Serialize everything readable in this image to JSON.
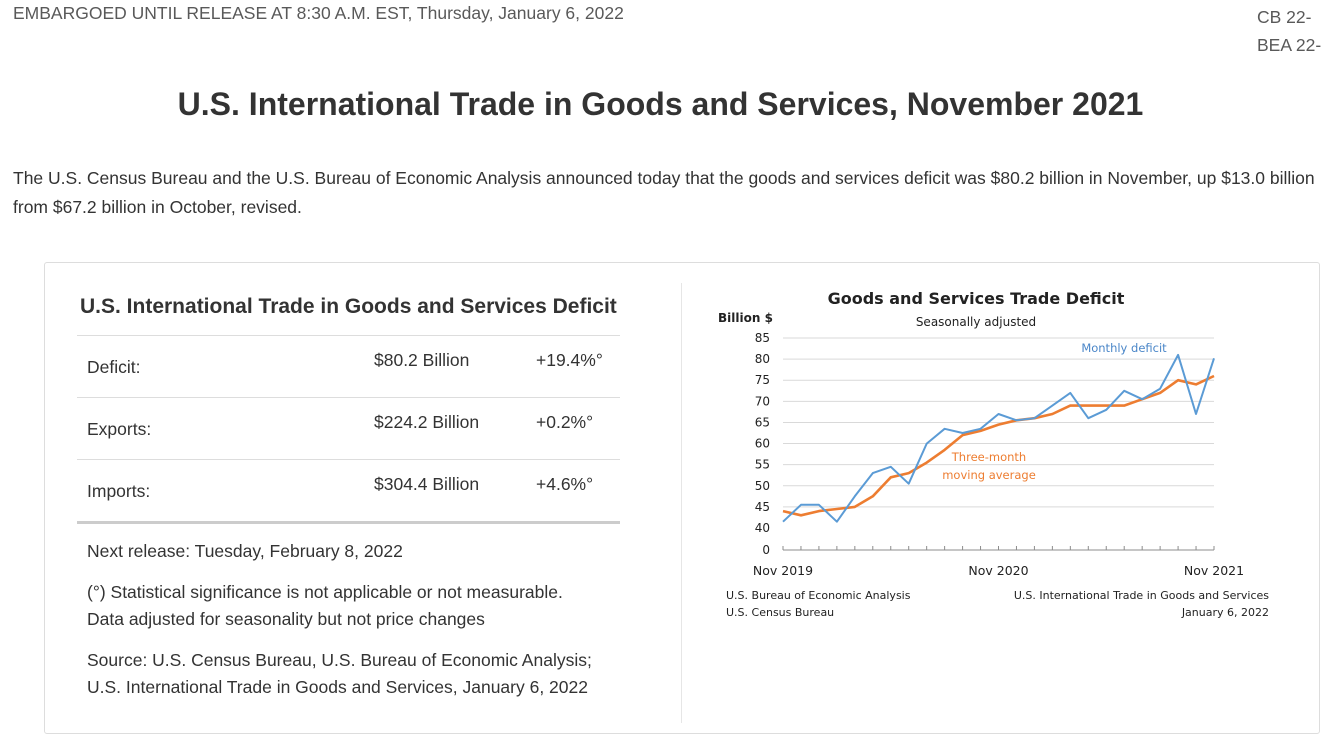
{
  "header": {
    "embargo": "EMBARGOED UNTIL RELEASE AT 8:30 A.M. EST, Thursday, January 6, 2022",
    "codes": [
      "CB 22-",
      "BEA 22-"
    ]
  },
  "title": "U.S. International Trade in Goods and Services, November 2021",
  "lead": "The U.S. Census Bureau and the U.S. Bureau of Economic Analysis announced today that the goods and services deficit was $80.2 billion in November, up $13.0 billion from $67.2 billion in October, revised.",
  "table": {
    "title": "U.S. International Trade in Goods and Services Deficit",
    "rows": [
      {
        "label": "Deficit:",
        "value": "$80.2 Billion",
        "change": "+19.4%°"
      },
      {
        "label": "Exports:",
        "value": "$224.2 Billion",
        "change": "+0.2%°"
      },
      {
        "label": "Imports:",
        "value": "$304.4 Billion",
        "change": "+4.6%°"
      }
    ]
  },
  "notes": {
    "next_release": "Next release: Tuesday, February 8, 2022",
    "significance_1": "(°) Statistical significance is not applicable or not measurable.",
    "significance_2": "Data adjusted for seasonality but not price changes",
    "source_1": "Source: U.S. Census Bureau, U.S. Bureau of Economic Analysis;",
    "source_2": "U.S. International Trade in Goods and Services, January 6, 2022"
  },
  "chart_data": {
    "type": "line",
    "title": "Goods and Services Trade Deficit",
    "subtitle": "Seasonally adjusted",
    "ylabel": "Billion $",
    "ylim": [
      40,
      85
    ],
    "y_break_label": "0",
    "yticks": [
      40,
      45,
      50,
      55,
      60,
      65,
      70,
      75,
      80,
      85
    ],
    "xtick_labels": [
      "Nov 2019",
      "Nov 2020",
      "Nov 2021"
    ],
    "x": [
      "Nov 2019",
      "Dec 2019",
      "Jan 2020",
      "Feb 2020",
      "Mar 2020",
      "Apr 2020",
      "May 2020",
      "Jun 2020",
      "Jul 2020",
      "Aug 2020",
      "Sep 2020",
      "Oct 2020",
      "Nov 2020",
      "Dec 2020",
      "Jan 2021",
      "Feb 2021",
      "Mar 2021",
      "Apr 2021",
      "May 2021",
      "Jun 2021",
      "Jul 2021",
      "Aug 2021",
      "Sep 2021",
      "Oct 2021",
      "Nov 2021"
    ],
    "series": [
      {
        "name": "Monthly deficit",
        "color": "#5b9bd5",
        "values": [
          41.5,
          45.5,
          45.5,
          41.5,
          47.5,
          53.0,
          54.5,
          50.5,
          60.0,
          63.5,
          62.5,
          63.5,
          67.0,
          65.5,
          66.0,
          69.0,
          72.0,
          66.0,
          68.0,
          72.5,
          70.5,
          73.0,
          81.0,
          67.0,
          80.2
        ]
      },
      {
        "name": "Three-month moving average",
        "color": "#ed7d31",
        "values": [
          44.0,
          43.0,
          44.0,
          44.5,
          45.0,
          47.5,
          52.0,
          53.0,
          55.5,
          58.5,
          62.0,
          63.0,
          64.5,
          65.5,
          66.0,
          67.0,
          69.0,
          69.0,
          69.0,
          69.0,
          70.5,
          72.0,
          75.0,
          74.0,
          76.0
        ]
      }
    ],
    "annotations": {
      "monthly": "Monthly deficit",
      "avg_1": "Three-month",
      "avg_2": "moving average"
    },
    "footer_left": [
      "U.S. Bureau of Economic Analysis",
      "U.S. Census Bureau"
    ],
    "footer_right": [
      "U.S. International Trade in Goods and Services",
      "January 6, 2022"
    ]
  }
}
